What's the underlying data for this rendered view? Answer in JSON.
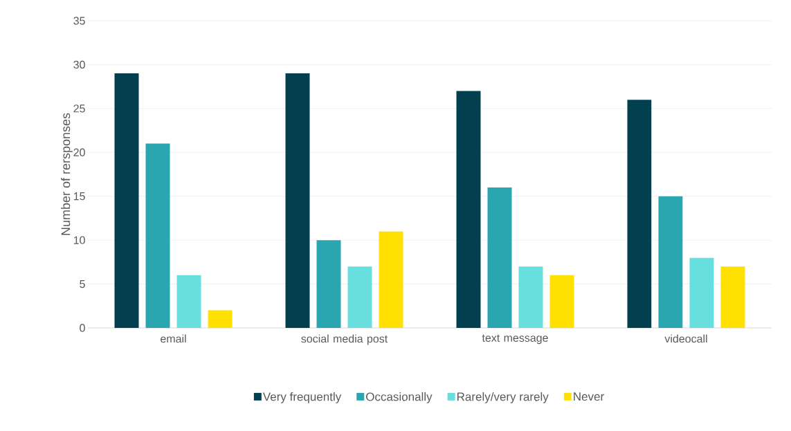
{
  "chart_data": {
    "type": "bar",
    "ylabel": "Number of rersponses",
    "categories": [
      "email",
      "social media post",
      "text message",
      "videocall"
    ],
    "series": [
      {
        "name": "Very frequently",
        "color": "#023f4f",
        "values": [
          29,
          29,
          27,
          26
        ]
      },
      {
        "name": "Occasionally",
        "color": "#2aa6b1",
        "values": [
          21,
          10,
          16,
          15
        ]
      },
      {
        "name": "Rarely/very rarely",
        "color": "#67dfdf",
        "values": [
          6,
          7,
          7,
          8
        ]
      },
      {
        "name": "Never",
        "color": "#ffe000",
        "values": [
          2,
          11,
          6,
          7
        ]
      }
    ],
    "ylim": [
      0,
      35
    ],
    "yticks": [
      0,
      5,
      10,
      15,
      20,
      25,
      30,
      35
    ],
    "grid": "y",
    "legend": "bottom"
  }
}
